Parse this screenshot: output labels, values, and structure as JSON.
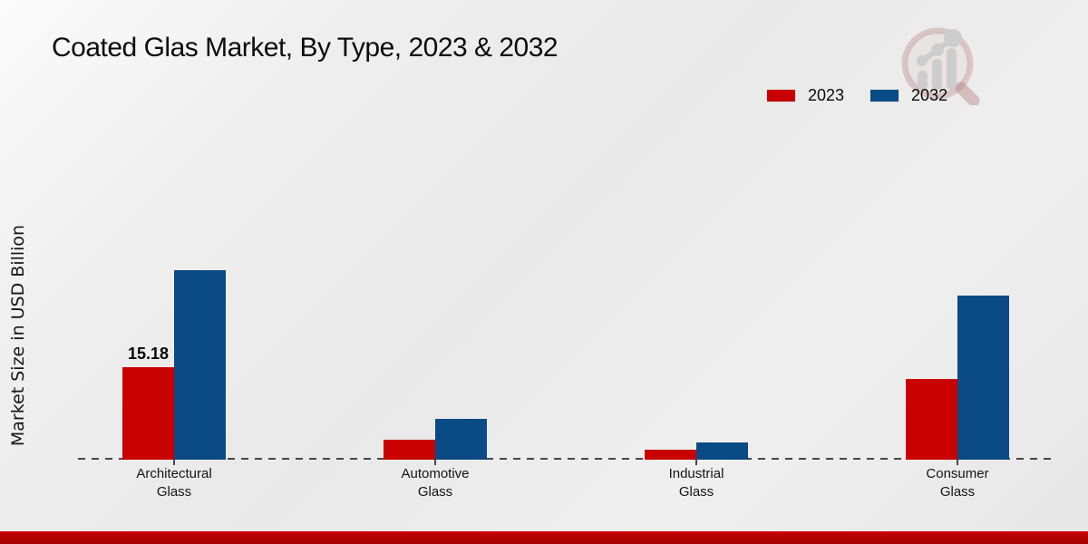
{
  "title": "Coated Glas Market, By Type, 2023 & 2032",
  "ylabel": "Market Size in USD Billion",
  "legend": [
    {
      "label": "2023",
      "color": "#c80100"
    },
    {
      "label": "2032",
      "color": "#0a4a85"
    }
  ],
  "icons": {
    "logo": "magnifier-growth-chart-logo"
  },
  "colors": {
    "series_2023": "#c80100",
    "series_2032": "#0a4a85",
    "baseline": "#474747",
    "footer_stripe": "#b40200"
  },
  "chart_data": {
    "type": "bar",
    "title": "Coated Glas Market, By Type, 2023 & 2032",
    "ylabel": "Market Size in USD Billion",
    "categories": [
      "Architectural Glass",
      "Automotive Glass",
      "Industrial Glass",
      "Consumer Glass"
    ],
    "series": [
      {
        "name": "2023",
        "color": "#c80100",
        "values": [
          15.18,
          3.2,
          1.6,
          13.3
        ]
      },
      {
        "name": "2032",
        "color": "#0a4a85",
        "values": [
          31.1,
          6.7,
          2.9,
          27.0
        ]
      }
    ],
    "data_labels": [
      {
        "series_index": 0,
        "category_index": 0,
        "text": "15.18"
      }
    ],
    "ylim": [
      0,
      34
    ],
    "grid": false,
    "baseline_style": "dashed",
    "legend_position": "top-right"
  }
}
